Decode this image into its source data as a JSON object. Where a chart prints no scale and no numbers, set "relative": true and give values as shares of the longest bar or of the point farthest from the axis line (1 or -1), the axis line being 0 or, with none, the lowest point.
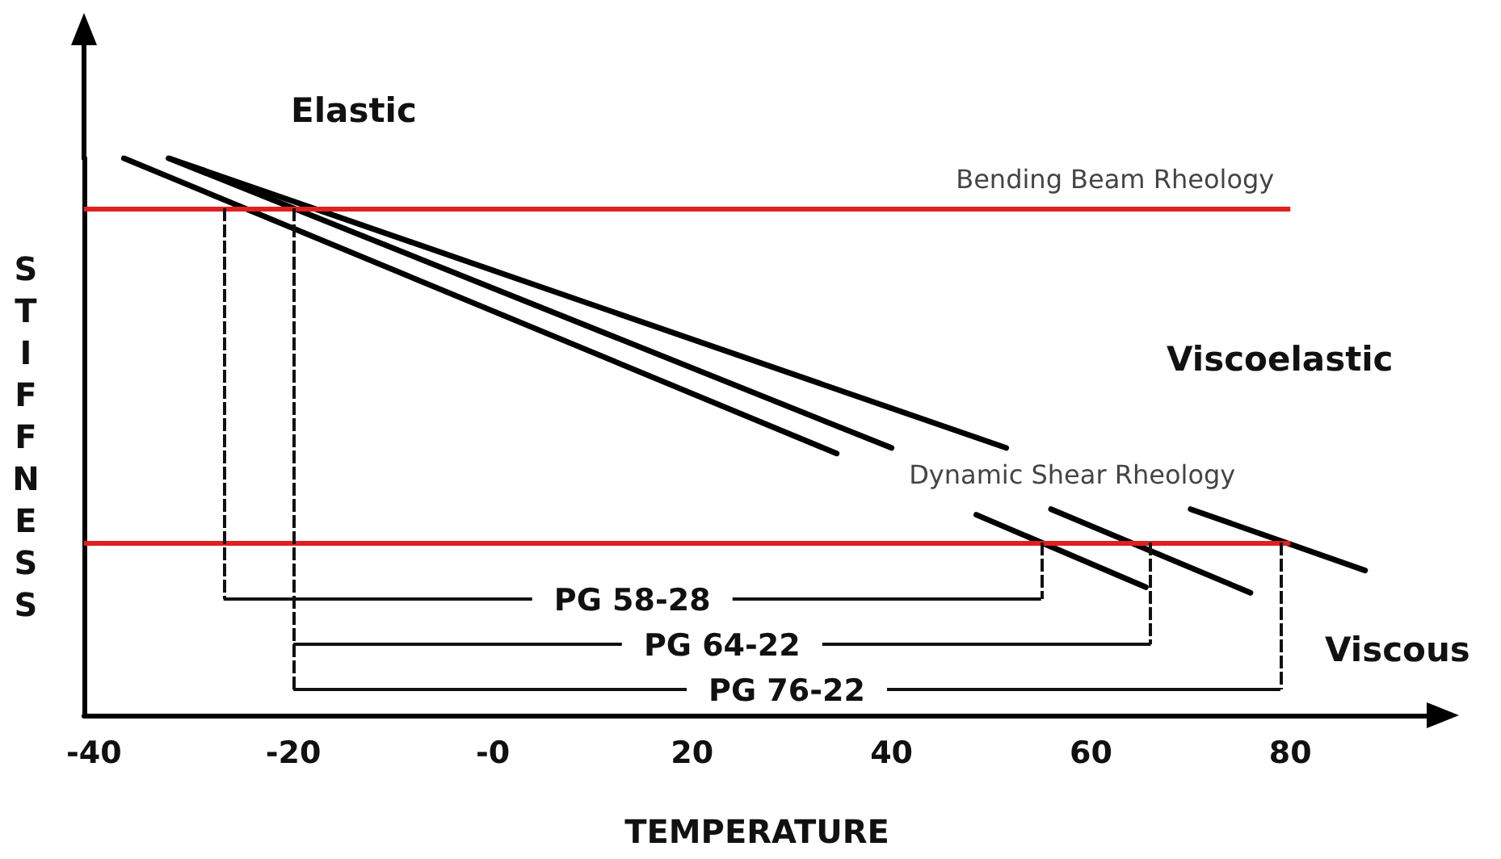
{
  "chart_data": {
    "type": "line",
    "relative": true,
    "xlabel": "TEMPERATURE",
    "ylabel": "STIFFNESS",
    "xlim": [
      -41,
      94
    ],
    "xticks": [
      -40,
      -20,
      {
        "value": 0,
        "label": "-0"
      },
      20,
      40,
      60,
      80
    ],
    "series": [
      {
        "color": "#000000",
        "x": [
          -37,
          34.5,
          41,
          48.5,
          65.5
        ],
        "values": [
          1,
          0.47,
          null,
          0.36,
          0.23
        ]
      },
      {
        "color": "#000000",
        "x": [
          -32.5,
          40,
          48,
          56,
          76
        ],
        "values": [
          1,
          0.48,
          null,
          0.37,
          0.22
        ]
      },
      {
        "color": "#000000",
        "x": [
          -32.5,
          51.5,
          61,
          70,
          87.5
        ],
        "values": [
          1,
          0.48,
          null,
          0.37,
          0.26
        ]
      }
    ],
    "ref_lines": [
      {
        "axis": "y",
        "value": 0.91,
        "label": "Bending Beam Rheology",
        "color": "#e02020"
      },
      {
        "axis": "y",
        "value": 0.31,
        "label": "Dynamic Shear Rheology",
        "color": "#e02020"
      },
      {
        "axis": "x",
        "value": -27,
        "color": "#111111",
        "line_style": "dashed"
      },
      {
        "axis": "x",
        "value": -20,
        "color": "#111111",
        "line_style": "dashed"
      },
      {
        "axis": "x",
        "value": 55,
        "color": "#111111",
        "line_style": "dashed"
      },
      {
        "axis": "x",
        "value": 66,
        "color": "#111111",
        "line_style": "dashed"
      },
      {
        "axis": "x",
        "value": 79,
        "color": "#111111",
        "line_style": "dashed"
      }
    ],
    "annotations": [
      "Elastic",
      "Viscoelastic",
      "Viscous",
      "PG 58-28",
      "PG 64-22",
      "PG 76-22"
    ],
    "grid": false,
    "marker": "none",
    "line_style": "solid"
  }
}
